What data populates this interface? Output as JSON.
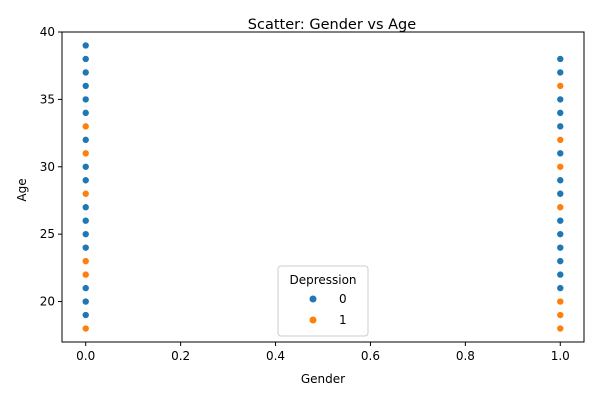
{
  "chart_data": {
    "type": "scatter",
    "title": "Scatter: Gender vs Age",
    "xlabel": "Gender",
    "ylabel": "Age",
    "xlim": [
      -0.05,
      1.05
    ],
    "ylim": [
      17.0,
      40.0
    ],
    "xticks": [
      "0.0",
      "0.2",
      "0.4",
      "0.6",
      "0.8",
      "1.0"
    ],
    "yticks": [
      "20",
      "25",
      "30",
      "35",
      "40"
    ],
    "grid": false,
    "legend": {
      "title": "Depression",
      "placement": "bottom-center",
      "entries": [
        "0",
        "1"
      ]
    },
    "series": [
      {
        "name": "0",
        "color": "#1f77b4",
        "points": [
          [
            0,
            19
          ],
          [
            0,
            20
          ],
          [
            0,
            21
          ],
          [
            0,
            24
          ],
          [
            0,
            25
          ],
          [
            0,
            26
          ],
          [
            0,
            27
          ],
          [
            0,
            29
          ],
          [
            0,
            30
          ],
          [
            0,
            32
          ],
          [
            0,
            34
          ],
          [
            0,
            35
          ],
          [
            0,
            36
          ],
          [
            0,
            37
          ],
          [
            0,
            38
          ],
          [
            0,
            39
          ],
          [
            1,
            21
          ],
          [
            1,
            22
          ],
          [
            1,
            23
          ],
          [
            1,
            24
          ],
          [
            1,
            25
          ],
          [
            1,
            26
          ],
          [
            1,
            28
          ],
          [
            1,
            29
          ],
          [
            1,
            31
          ],
          [
            1,
            33
          ],
          [
            1,
            34
          ],
          [
            1,
            35
          ],
          [
            1,
            37
          ],
          [
            1,
            38
          ]
        ]
      },
      {
        "name": "1",
        "color": "#ff7f0e",
        "points": [
          [
            0,
            18
          ],
          [
            0,
            22
          ],
          [
            0,
            23
          ],
          [
            0,
            28
          ],
          [
            0,
            31
          ],
          [
            0,
            33
          ],
          [
            1,
            18
          ],
          [
            1,
            19
          ],
          [
            1,
            20
          ],
          [
            1,
            27
          ],
          [
            1,
            30
          ],
          [
            1,
            32
          ],
          [
            1,
            36
          ]
        ]
      }
    ]
  }
}
